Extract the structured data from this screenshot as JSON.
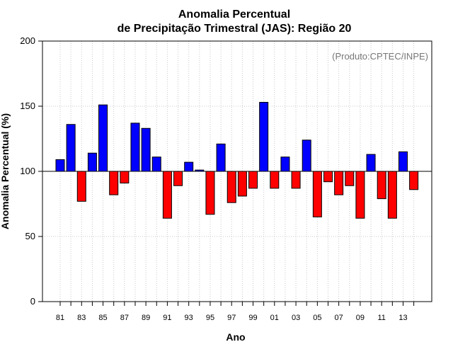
{
  "chart_data": {
    "type": "bar",
    "title": [
      "Anomalia Percentual",
      "de Precipitação Trimestral (JAS): Região 20"
    ],
    "xlabel": "Ano",
    "ylabel": "Anomalia Percentual (%)",
    "credit": "(Produto:CPTEC/INPE)",
    "baseline": 100,
    "ylim": [
      0,
      200
    ],
    "yticks": [
      0,
      50,
      100,
      150,
      200
    ],
    "grid": true,
    "categories": [
      "81",
      "82",
      "83",
      "84",
      "85",
      "86",
      "87",
      "88",
      "89",
      "90",
      "91",
      "92",
      "93",
      "94",
      "95",
      "96",
      "97",
      "98",
      "99",
      "00",
      "01",
      "02",
      "03",
      "04",
      "05",
      "06",
      "07",
      "08",
      "09",
      "10",
      "11",
      "12",
      "13",
      "14"
    ],
    "xtick_labels": [
      "81",
      "83",
      "85",
      "87",
      "89",
      "91",
      "93",
      "95",
      "97",
      "99",
      "01",
      "03",
      "05",
      "07",
      "09",
      "11",
      "13"
    ],
    "values": [
      109,
      136,
      77,
      114,
      151,
      82,
      91,
      137,
      133,
      111,
      64,
      89,
      107,
      101,
      67,
      121,
      76,
      81,
      87,
      153,
      87,
      111,
      87,
      124,
      65,
      92,
      82,
      89,
      64,
      113,
      79,
      64,
      115,
      86
    ],
    "colors": {
      "above": "#0000ff",
      "below": "#ff0000",
      "gridline": "#c8c8c8",
      "axis": "#000000"
    }
  }
}
